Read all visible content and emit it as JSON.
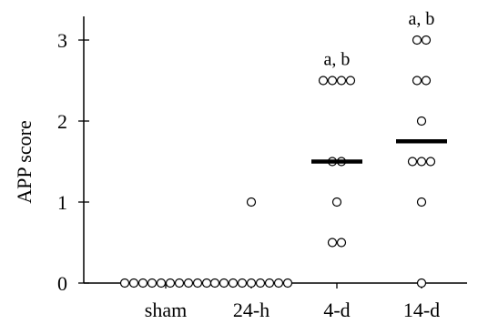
{
  "chart_data": {
    "type": "scatter",
    "ylabel": "APP score",
    "xlabel": "",
    "ylim": [
      0,
      3
    ],
    "yticks": [
      0,
      1,
      2,
      3
    ],
    "categories": [
      "sham",
      "24-h",
      "4-d",
      "14-d"
    ],
    "points": [
      [
        0,
        0,
        0,
        0,
        0,
        0,
        0,
        0,
        0,
        0
      ],
      [
        1,
        0,
        0,
        0,
        0,
        0,
        0,
        0,
        0,
        0
      ],
      [
        2.5,
        2.5,
        2.5,
        2.5,
        1.5,
        1.5,
        1,
        0.5,
        0.5
      ],
      [
        3,
        3,
        2.5,
        2.5,
        2,
        1.5,
        1.5,
        1.5,
        1,
        0
      ]
    ],
    "medians": [
      null,
      null,
      1.5,
      1.75
    ],
    "annotations": [
      "",
      "",
      "a, b",
      "a, b"
    ],
    "grid": false,
    "marker": "open-circle"
  }
}
